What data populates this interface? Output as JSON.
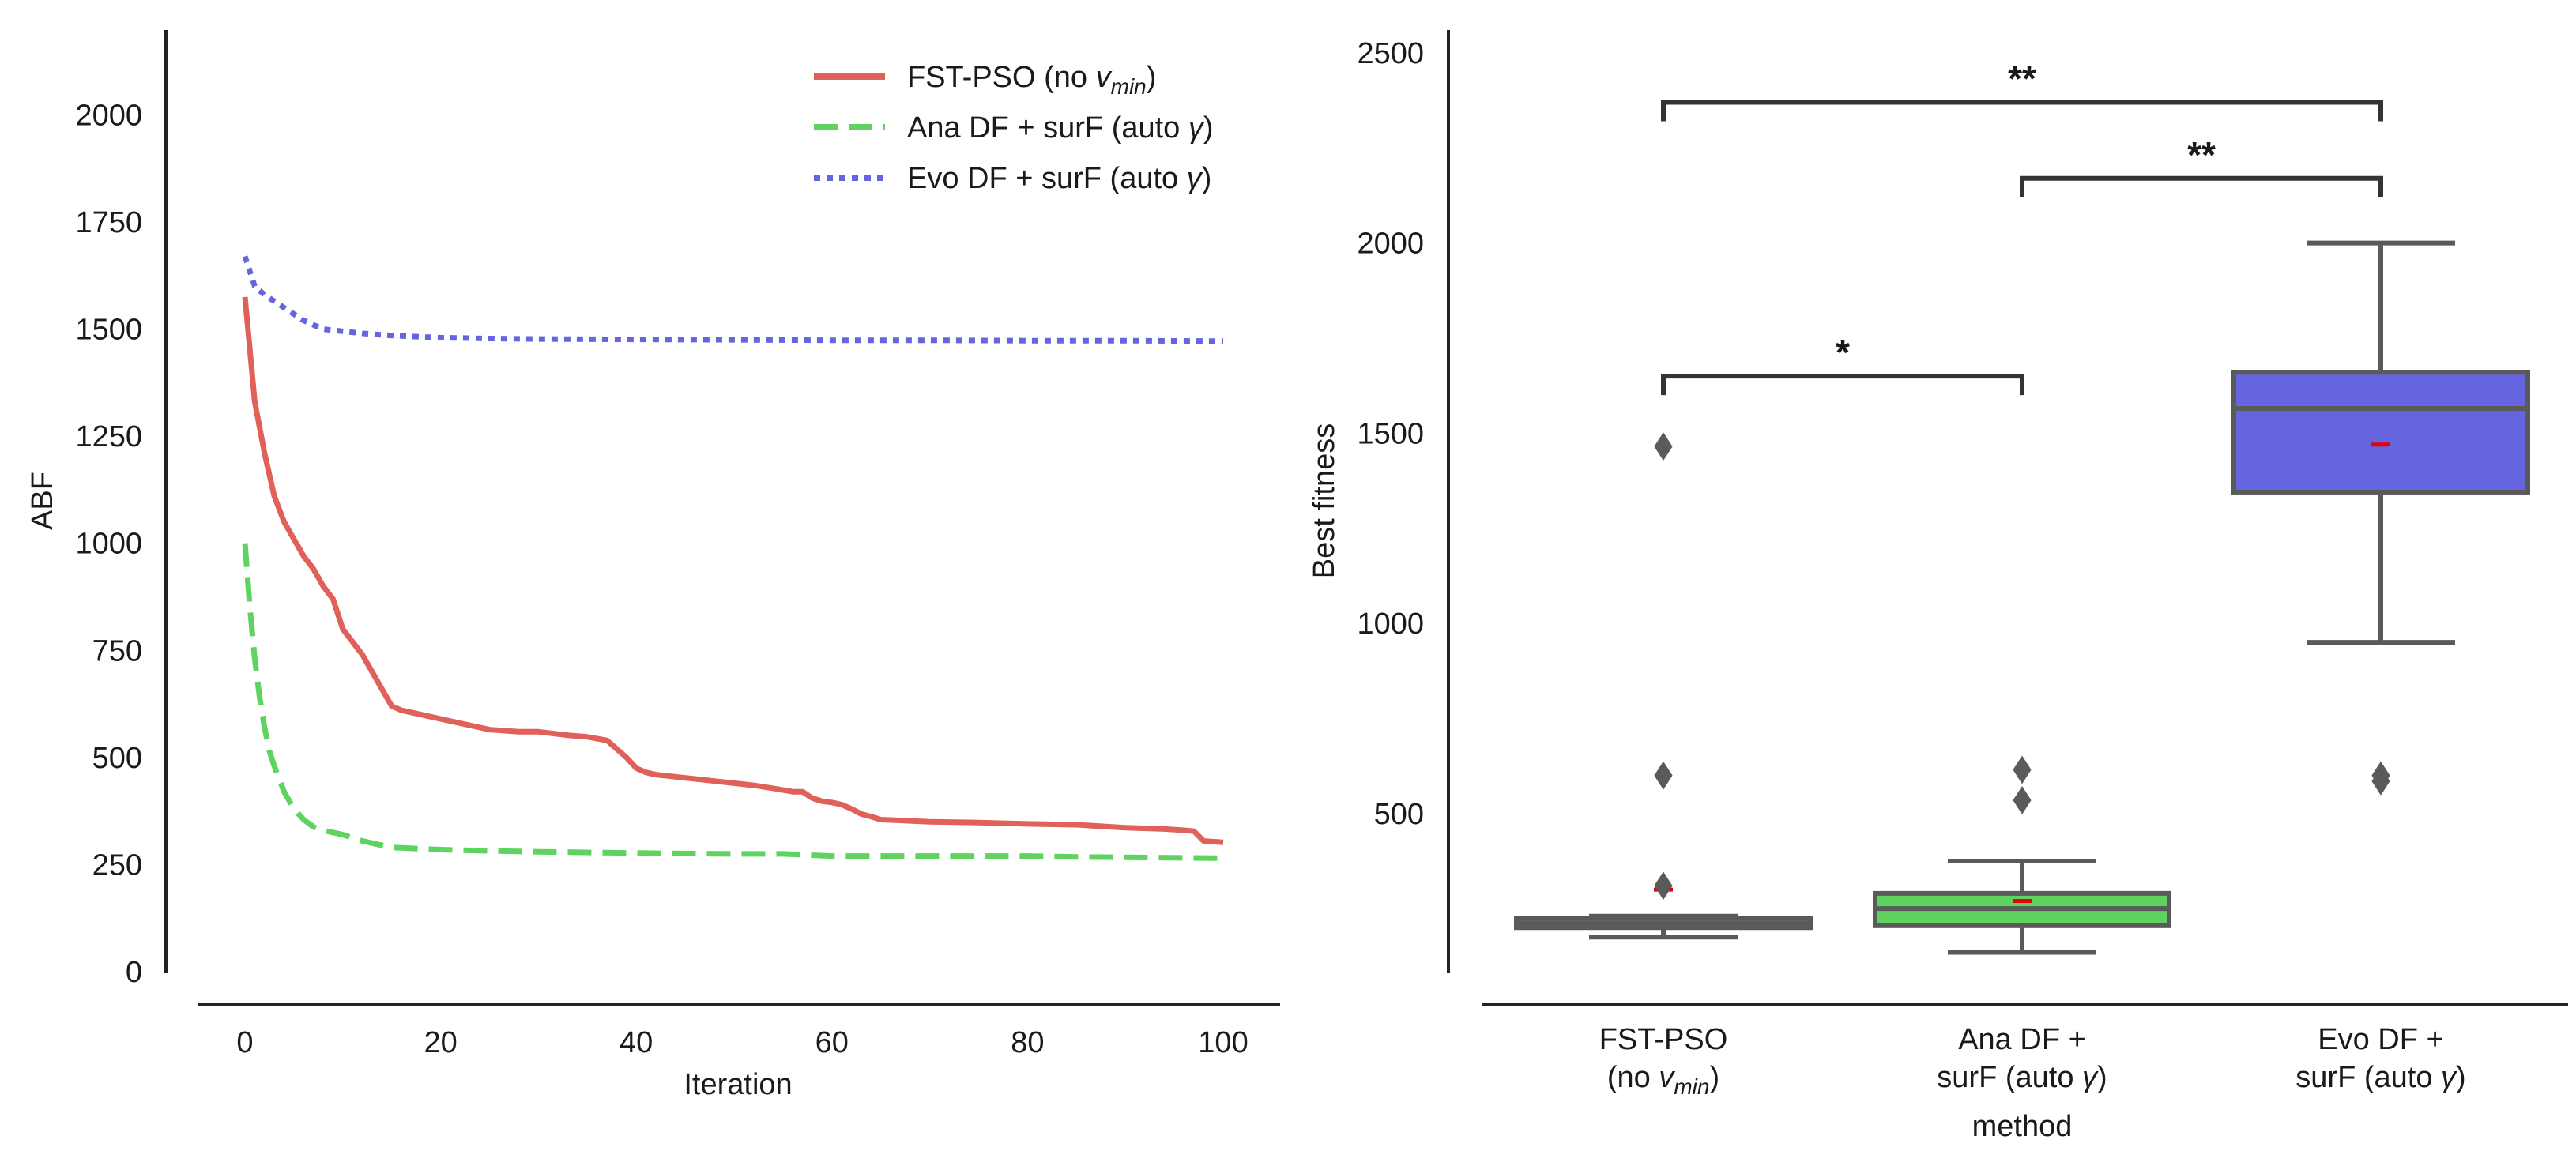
{
  "chart_data": [
    {
      "type": "line",
      "title": "",
      "xlabel": "Iteration",
      "ylabel": "ABF",
      "xlim": [
        -5,
        105
      ],
      "ylim": [
        0,
        2200
      ],
      "xticks": [
        0,
        20,
        40,
        60,
        80,
        100
      ],
      "yticks": [
        0,
        250,
        500,
        750,
        1000,
        1250,
        1500,
        1750,
        2000
      ],
      "xtick_labels": [
        "0",
        "20",
        "40",
        "60",
        "80",
        "100"
      ],
      "ytick_labels": [
        "0",
        "250",
        "500",
        "750",
        "1000",
        "1250",
        "1500",
        "1750",
        "2000"
      ],
      "grid": false,
      "legend_position": "top-right",
      "series": [
        {
          "name": "FST-PSO (no v_min)",
          "legend_main": "FST-PSO (no ",
          "legend_var": "v",
          "legend_sub": "min",
          "legend_tail": ")",
          "color": "#e0605a",
          "style": "solid",
          "x": [
            0,
            1,
            2,
            3,
            4,
            5,
            6,
            7,
            8,
            9,
            10,
            11,
            12,
            13,
            14,
            15,
            16,
            18,
            20,
            22,
            25,
            28,
            30,
            33,
            35,
            37,
            38,
            39,
            40,
            41,
            42,
            44,
            46,
            48,
            50,
            52,
            54,
            56,
            57,
            58,
            59,
            60,
            61,
            62,
            63,
            64,
            65,
            68,
            70,
            75,
            80,
            85,
            90,
            94,
            96,
            97,
            98,
            100
          ],
          "y": [
            1575,
            1330,
            1210,
            1110,
            1050,
            1010,
            970,
            940,
            900,
            870,
            800,
            770,
            740,
            700,
            660,
            620,
            610,
            600,
            590,
            580,
            565,
            560,
            560,
            552,
            548,
            540,
            520,
            500,
            475,
            465,
            460,
            455,
            450,
            445,
            440,
            435,
            428,
            420,
            420,
            405,
            398,
            395,
            390,
            380,
            368,
            362,
            355,
            352,
            350,
            348,
            345,
            343,
            336,
            333,
            330,
            328,
            305,
            302
          ]
        },
        {
          "name": "Ana DF + surF (auto gamma)",
          "legend_main": "Ana DF + surF (auto ",
          "legend_var": "γ",
          "legend_sub": "",
          "legend_tail": ")",
          "color": "#5fd35f",
          "style": "dashed",
          "x": [
            0,
            0.5,
            1,
            1.5,
            2,
            2.5,
            3,
            4,
            5,
            6,
            7,
            8,
            9,
            10,
            12,
            15,
            18,
            20,
            25,
            30,
            40,
            50,
            55,
            60,
            70,
            80,
            85,
            90,
            100
          ],
          "y": [
            1000,
            850,
            730,
            640,
            570,
            515,
            480,
            420,
            380,
            355,
            338,
            330,
            325,
            320,
            305,
            290,
            287,
            285,
            282,
            280,
            277,
            275,
            275,
            270,
            270,
            270,
            268,
            267,
            265
          ]
        },
        {
          "name": "Evo DF + surF (auto gamma)",
          "legend_main": "Evo DF + surF (auto ",
          "legend_var": "γ",
          "legend_sub": "",
          "legend_tail": ")",
          "color": "#6565e0",
          "style": "dotted",
          "x": [
            0,
            1,
            2,
            3,
            4,
            5,
            6,
            7,
            8,
            10,
            12,
            15,
            18,
            20,
            25,
            30,
            40,
            50,
            60,
            70,
            80,
            90,
            100
          ],
          "y": [
            1670,
            1600,
            1580,
            1565,
            1550,
            1535,
            1520,
            1510,
            1500,
            1495,
            1490,
            1485,
            1482,
            1480,
            1478,
            1477,
            1476,
            1475,
            1474,
            1474,
            1473,
            1473,
            1472
          ]
        }
      ]
    },
    {
      "type": "box",
      "title": "",
      "xlabel": "method",
      "ylabel": "Best fitness",
      "ylim": [
        80,
        2560
      ],
      "yticks": [
        500,
        1000,
        1500,
        2000,
        2500
      ],
      "ytick_labels": [
        "500",
        "1000",
        "1500",
        "2000",
        "2500"
      ],
      "grid": false,
      "boxes": [
        {
          "category_line1": "FST-PSO",
          "category_line2_main": "(no ",
          "category_line2_var": "v",
          "category_line2_sub": "min",
          "category_line2_tail": ")",
          "color": "#666666",
          "whisker_low": 175,
          "q1": 200,
          "median": 210,
          "q3": 225,
          "whisker_high": 230,
          "mean": 300,
          "outliers": [
            310,
            600,
            1465
          ]
        },
        {
          "category_line1": "Ana DF +",
          "category_line2_main": "surF (auto ",
          "category_line2_var": "γ",
          "category_line2_sub": "",
          "category_line2_tail": ")",
          "color": "#5fd35f",
          "whisker_low": 135,
          "q1": 205,
          "median": 250,
          "q3": 290,
          "whisker_high": 375,
          "mean": 270,
          "outliers": [
            535,
            615
          ]
        },
        {
          "category_line1": "Evo DF +",
          "category_line2_main": "surF (auto ",
          "category_line2_var": "γ",
          "category_line2_sub": "",
          "category_line2_tail": ")",
          "color": "#6565e0",
          "whisker_low": 950,
          "q1": 1345,
          "median": 1565,
          "q3": 1660,
          "whisker_high": 2000,
          "mean": 1470,
          "outliers": [
            585,
            600
          ]
        }
      ],
      "mean_marker_color": "#e8000b",
      "significance": [
        {
          "from": 0,
          "to": 1,
          "y": 1650,
          "label": "*"
        },
        {
          "from": 1,
          "to": 2,
          "y": 2170,
          "label": "**"
        },
        {
          "from": 0,
          "to": 2,
          "y": 2370,
          "label": "**"
        }
      ]
    }
  ]
}
